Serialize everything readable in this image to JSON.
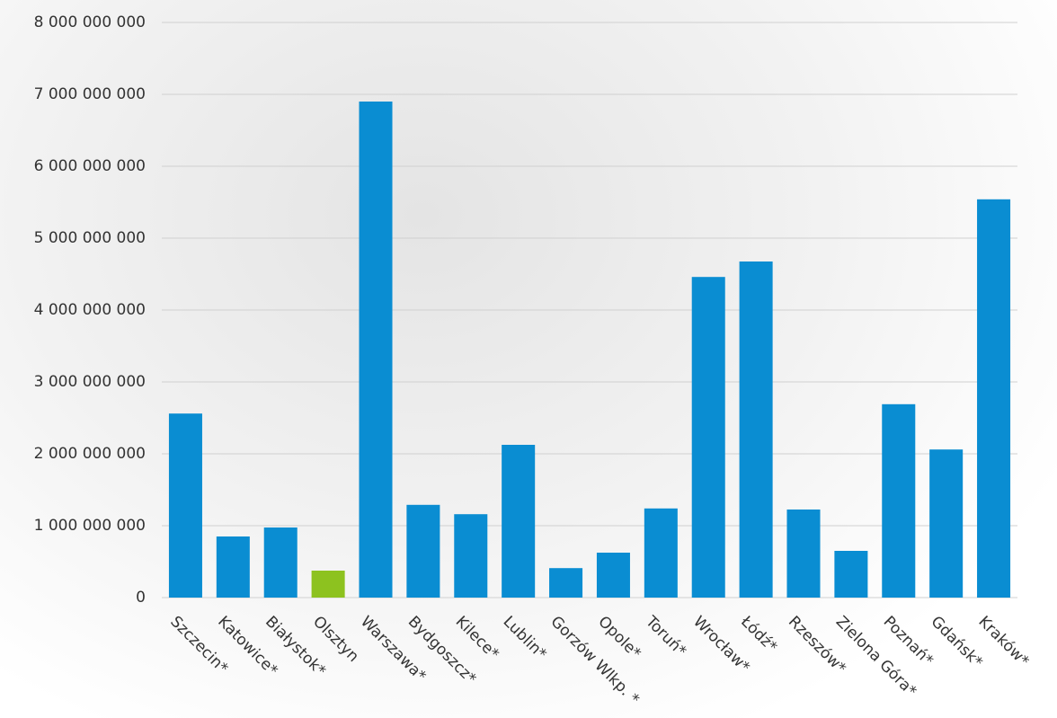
{
  "chart_data": {
    "type": "bar",
    "categories": [
      "Szczecin*",
      "Katowice*",
      "Białystok*",
      "Olsztyn",
      "Warszawa*",
      "Bydgoszcz*",
      "Kilece*",
      "Lublin*",
      "Gorzów Wlkp. *",
      "Opole*",
      "Toruń*",
      "Wrocław*",
      "Łódź*",
      "Rzeszów*",
      "Zielona Góra*",
      "Poznań*",
      "Gdańsk*",
      "Kraków*"
    ],
    "values": [
      2560000000,
      850000000,
      975000000,
      375000000,
      6900000000,
      1290000000,
      1160000000,
      2125000000,
      410000000,
      625000000,
      1240000000,
      4460000000,
      4675000000,
      1225000000,
      650000000,
      2690000000,
      2060000000,
      5540000000
    ],
    "colors": [
      "#0a8dd2",
      "#0a8dd2",
      "#0a8dd2",
      "#8dc21f",
      "#0a8dd2",
      "#0a8dd2",
      "#0a8dd2",
      "#0a8dd2",
      "#0a8dd2",
      "#0a8dd2",
      "#0a8dd2",
      "#0a8dd2",
      "#0a8dd2",
      "#0a8dd2",
      "#0a8dd2",
      "#0a8dd2",
      "#0a8dd2",
      "#0a8dd2"
    ],
    "ylim": [
      0,
      8000000000
    ],
    "yticks": [
      0,
      {
        "value": 1000000000,
        "label": "1 000 000 000"
      },
      {
        "value": 2000000000,
        "label": "2 000 000 000"
      },
      {
        "value": 3000000000,
        "label": "3 000 000 000"
      },
      {
        "value": 4000000000,
        "label": "4 000 000 000"
      },
      {
        "value": 5000000000,
        "label": "5 000 000 000"
      },
      {
        "value": 6000000000,
        "label": "6 000 000 000"
      },
      {
        "value": 7000000000,
        "label": "7 000 000 000"
      },
      {
        "value": 8000000000,
        "label": "8 000 000 000"
      }
    ],
    "grid": true
  }
}
